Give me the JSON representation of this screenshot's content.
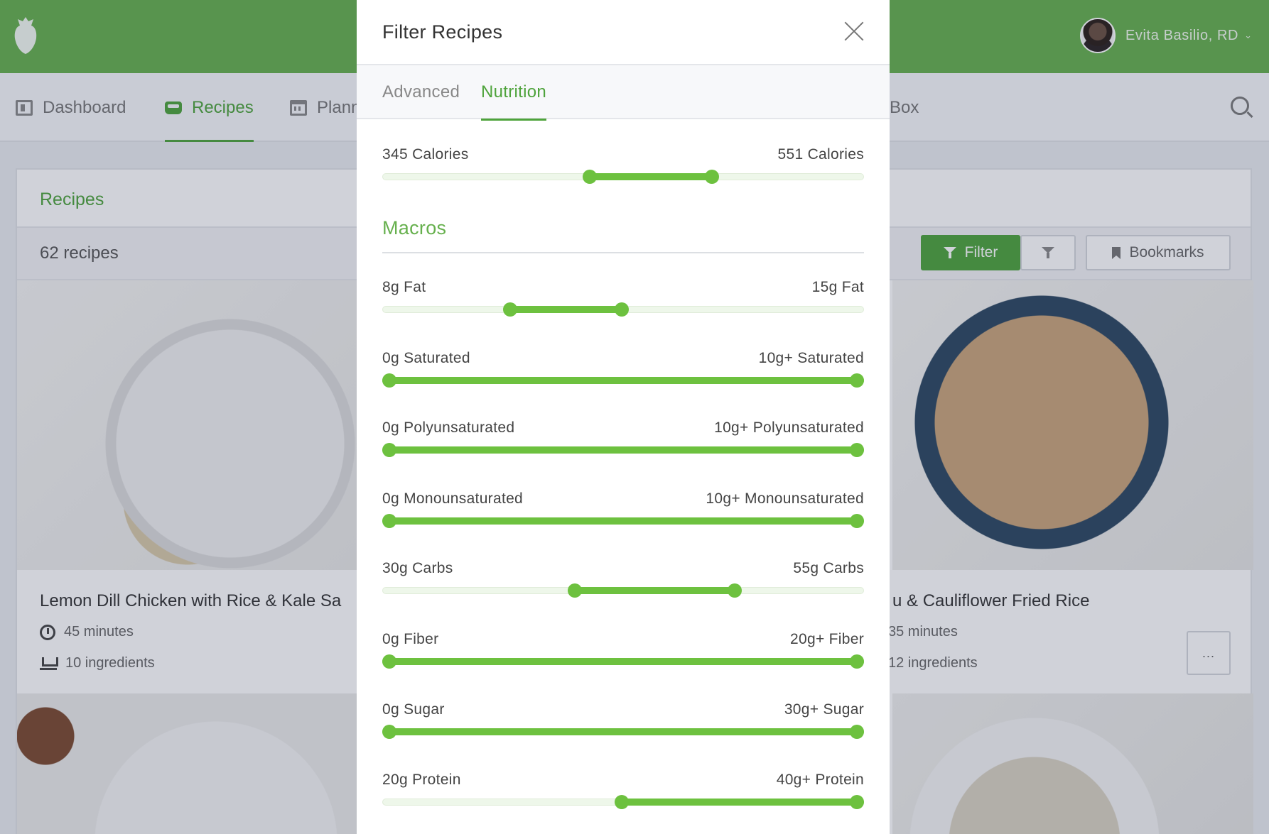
{
  "header": {
    "user_name": "Evita Basilio, RD",
    "accent_color": "#66b04d"
  },
  "nav": {
    "items": [
      {
        "label": "Dashboard",
        "icon": "dashboard-icon",
        "active": false
      },
      {
        "label": "Recipes",
        "icon": "recipes-icon",
        "active": true
      },
      {
        "label": "Plann",
        "icon": "calendar-icon",
        "active": false
      },
      {
        "label": "Box",
        "icon": "",
        "active": false
      }
    ],
    "search_icon": "search-icon"
  },
  "main": {
    "title": "Recipes",
    "count": "62 recipes",
    "buttons": {
      "filter": "Filter",
      "bookmarks": "Bookmarks"
    },
    "cards": [
      {
        "title": "Lemon Dill Chicken with Rice & Kale Sa",
        "time": "45 minutes",
        "ingredients": "10 ingredients"
      },
      {
        "title": "u & Cauliflower Fried Rice",
        "time": "35 minutes",
        "ingredients": "12 ingredients",
        "more": "..."
      }
    ]
  },
  "modal": {
    "title": "Filter Recipes",
    "tabs": [
      {
        "label": "Advanced",
        "active": false
      },
      {
        "label": "Nutrition",
        "active": true
      }
    ],
    "section_title": "Macros",
    "sliders": [
      {
        "id": "calories",
        "min_label": "345 Calories",
        "max_label": "551 Calories",
        "low": 0.43,
        "high": 0.685
      },
      {
        "id": "fat",
        "min_label": "8g Fat",
        "max_label": "15g Fat",
        "low": 0.265,
        "high": 0.497
      },
      {
        "id": "saturated",
        "min_label": "0g Saturated",
        "max_label": "10g+ Saturated",
        "low": 0,
        "high": 1
      },
      {
        "id": "polyunsaturated",
        "min_label": "0g Polyunsaturated",
        "max_label": "10g+ Polyunsaturated",
        "low": 0,
        "high": 1
      },
      {
        "id": "monounsaturated",
        "min_label": "0g Monounsaturated",
        "max_label": "10g+ Monounsaturated",
        "low": 0,
        "high": 1
      },
      {
        "id": "carbs",
        "min_label": "30g Carbs",
        "max_label": "55g Carbs",
        "low": 0.4,
        "high": 0.732
      },
      {
        "id": "fiber",
        "min_label": "0g Fiber",
        "max_label": "20g+ Fiber",
        "low": 0,
        "high": 1
      },
      {
        "id": "sugar",
        "min_label": "0g Sugar",
        "max_label": "30g+ Sugar",
        "low": 0,
        "high": 1
      },
      {
        "id": "protein",
        "min_label": "20g Protein",
        "max_label": "40g+ Protein",
        "low": 0.497,
        "high": 1
      }
    ]
  }
}
